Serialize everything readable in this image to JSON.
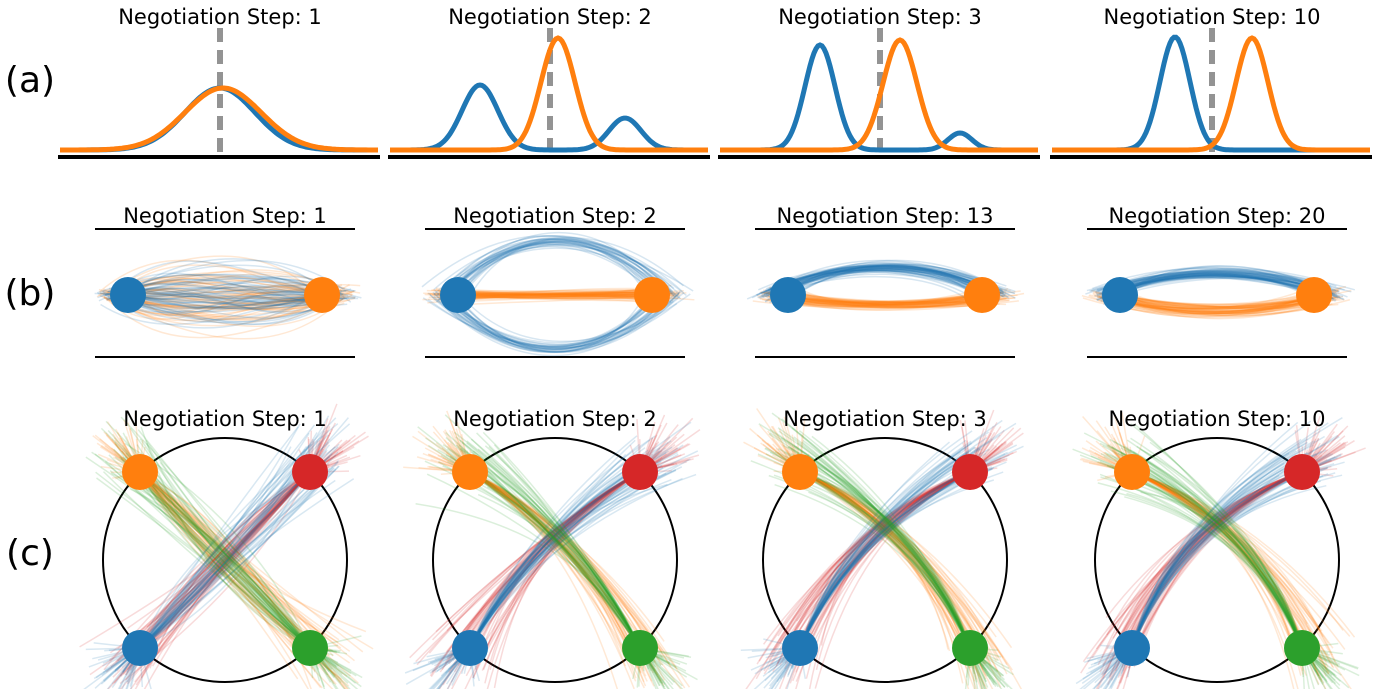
{
  "row_labels": [
    "(a)",
    "(b)",
    "(c)"
  ],
  "rows": [
    {
      "titles": [
        "Negotiation Step: 1",
        "Negotiation Step: 2",
        "Negotiation Step: 3",
        "Negotiation Step: 10"
      ]
    },
    {
      "titles": [
        "Negotiation Step: 1",
        "Negotiation Step: 2",
        "Negotiation Step: 13",
        "Negotiation Step: 20"
      ]
    },
    {
      "titles": [
        "Negotiation Step: 1",
        "Negotiation Step: 2",
        "Negotiation Step: 3",
        "Negotiation Step: 10"
      ]
    }
  ]
}
